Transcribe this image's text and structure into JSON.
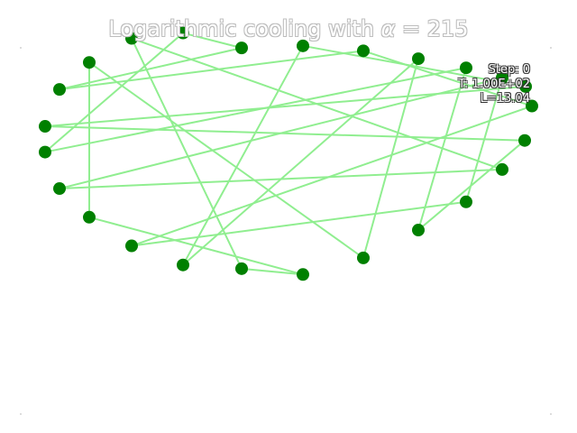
{
  "title": {
    "prefix": "Logarithmic cooling with ",
    "symbol": "α",
    "suffix": " = 215"
  },
  "info": {
    "step": "Step: 0",
    "temperature": "T: 1.00E+02",
    "length": "L=13.04"
  },
  "colors": {
    "edge": "#90ee90",
    "node": "#008000"
  },
  "chart_data": {
    "type": "scatter",
    "description_free": true,
    "axes_visible": false,
    "nodes": [
      {
        "x": 0.268,
        "y": 0.928
      },
      {
        "x": 0.336,
        "y": 0.933
      },
      {
        "x": 0.403,
        "y": 0.921
      },
      {
        "x": 0.464,
        "y": 0.902
      },
      {
        "x": 0.517,
        "y": 0.88
      },
      {
        "x": 0.557,
        "y": 0.856
      },
      {
        "x": 0.583,
        "y": 0.835
      },
      {
        "x": 0.59,
        "y": 0.788
      },
      {
        "x": 0.582,
        "y": 0.705
      },
      {
        "x": 0.557,
        "y": 0.635
      },
      {
        "x": 0.517,
        "y": 0.557
      },
      {
        "x": 0.464,
        "y": 0.489
      },
      {
        "x": 0.403,
        "y": 0.422
      },
      {
        "x": 0.336,
        "y": 0.382
      },
      {
        "x": 0.268,
        "y": 0.396
      },
      {
        "x": 0.203,
        "y": 0.405
      },
      {
        "x": 0.146,
        "y": 0.451
      },
      {
        "x": 0.099,
        "y": 0.52
      },
      {
        "x": 0.066,
        "y": 0.589
      },
      {
        "x": 0.05,
        "y": 0.677
      },
      {
        "x": 0.05,
        "y": 0.739
      },
      {
        "x": 0.066,
        "y": 0.828
      },
      {
        "x": 0.099,
        "y": 0.893
      },
      {
        "x": 0.146,
        "y": 0.951
      },
      {
        "x": 0.203,
        "y": 0.964
      }
    ],
    "tour": [
      0,
      24,
      19,
      4,
      11,
      8,
      20,
      6,
      1,
      15,
      3,
      12,
      22,
      17,
      13,
      14,
      23,
      9,
      18,
      5,
      10,
      16,
      7,
      2,
      21,
      0
    ]
  }
}
